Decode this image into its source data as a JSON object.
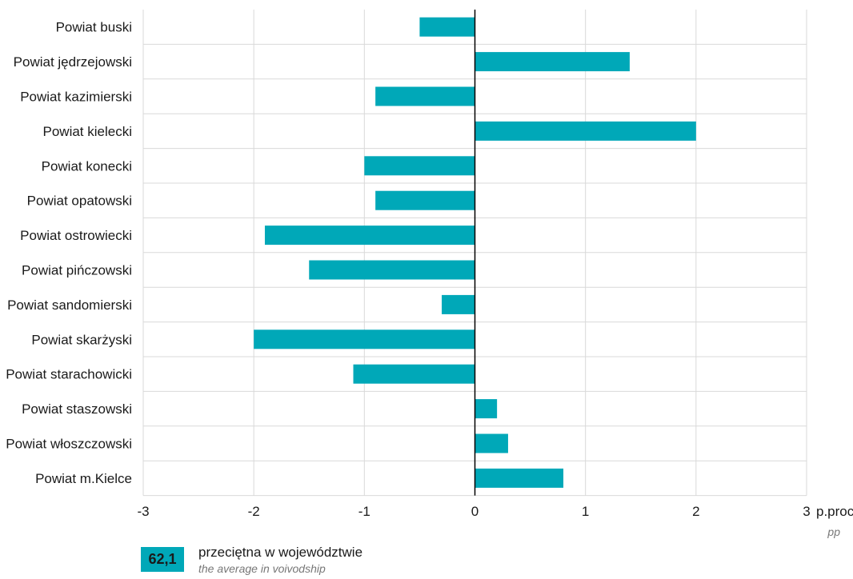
{
  "chart_data": {
    "type": "bar",
    "orientation": "horizontal",
    "categories": [
      "Powiat buski",
      "Powiat jędrzejowski",
      "Powiat kazimierski",
      "Powiat kielecki",
      "Powiat konecki",
      "Powiat opatowski",
      "Powiat ostrowiecki",
      "Powiat pińczowski",
      "Powiat sandomierski",
      "Powiat skarżyski",
      "Powiat starachowicki",
      "Powiat staszowski",
      "Powiat włoszczowski",
      "Powiat m.Kielce"
    ],
    "values": [
      -0.5,
      1.4,
      -0.9,
      2.0,
      -1.0,
      -0.9,
      -1.9,
      -1.5,
      -0.3,
      -2.0,
      -1.1,
      0.2,
      0.3,
      0.8
    ],
    "xlim": [
      -3,
      3
    ],
    "xticks": [
      "-3",
      "-2",
      "-1",
      "0",
      "1",
      "2",
      "3"
    ],
    "xlabel": "p.proc",
    "xlabel_en": "pp",
    "bar_color": "#00a8b8",
    "grid": true
  },
  "legend": {
    "value": "62,1",
    "label_pl": "przeciętna w województwie",
    "label_en": "the average in voivodship"
  }
}
